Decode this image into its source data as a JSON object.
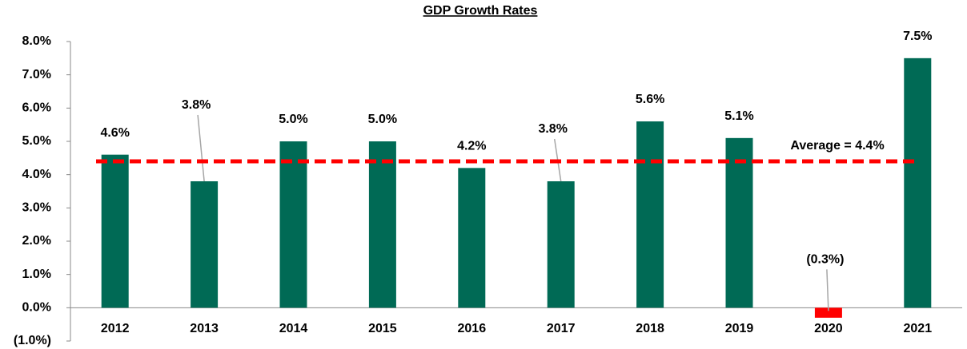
{
  "chart_data": {
    "type": "bar",
    "title": "GDP Growth Rates",
    "categories": [
      "2012",
      "2013",
      "2014",
      "2015",
      "2016",
      "2017",
      "2018",
      "2019",
      "2020",
      "2021"
    ],
    "values": [
      4.6,
      3.8,
      5.0,
      5.0,
      4.2,
      3.8,
      5.6,
      5.1,
      -0.3,
      7.5
    ],
    "value_labels": [
      "4.6%",
      "3.8%",
      "5.0%",
      "5.0%",
      "4.2%",
      "3.8%",
      "5.6%",
      "5.1%",
      "(0.3%)",
      "7.5%"
    ],
    "colors": [
      "#006a55",
      "#006a55",
      "#006a55",
      "#006a55",
      "#006a55",
      "#006a55",
      "#006a55",
      "#006a55",
      "#ff0000",
      "#006a55"
    ],
    "ylim": [
      -1,
      8
    ],
    "yticks": [
      {
        "value": -1,
        "label": "(1.0%)"
      },
      {
        "value": 0,
        "label": "0.0%"
      },
      {
        "value": 1,
        "label": "1.0%"
      },
      {
        "value": 2,
        "label": "2.0%"
      },
      {
        "value": 3,
        "label": "3.0%"
      },
      {
        "value": 4,
        "label": "4.0%"
      },
      {
        "value": 5,
        "label": "5.0%"
      },
      {
        "value": 6,
        "label": "6.0%"
      },
      {
        "value": 7,
        "label": "7.0%"
      },
      {
        "value": 8,
        "label": "8.0%"
      }
    ],
    "grid": false,
    "reference_line": {
      "value": 4.4,
      "label": "Average = 4.4%",
      "color": "#ff0000"
    }
  }
}
